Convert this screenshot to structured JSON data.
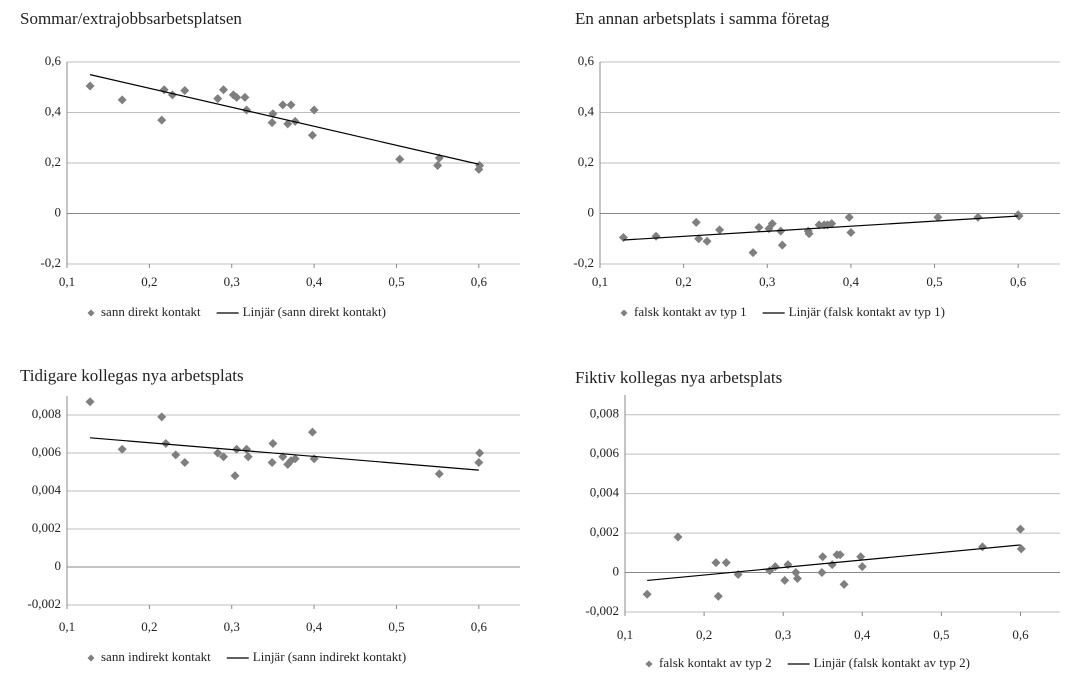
{
  "chart_data": [
    {
      "type": "scatter",
      "title": "Sommar/extrajobbsarbetsplatsen",
      "xlim": [
        0.1,
        0.65
      ],
      "ylim": [
        -0.2,
        0.6
      ],
      "xticks": [
        {
          "value": 0.1,
          "label": "0,1"
        },
        {
          "value": 0.2,
          "label": "0,2"
        },
        {
          "value": 0.3,
          "label": "0,3"
        },
        {
          "value": 0.4,
          "label": "0,4"
        },
        {
          "value": 0.5,
          "label": "0,5"
        },
        {
          "value": 0.6,
          "label": "0,6"
        }
      ],
      "yticks": [
        {
          "value": -0.2,
          "label": "-0,2"
        },
        0,
        {
          "value": 0.2,
          "label": "0,2"
        },
        {
          "value": 0.4,
          "label": "0,4"
        },
        {
          "value": 0.6,
          "label": "0,6"
        }
      ],
      "grid": true,
      "series": [
        {
          "name": "sann direkt kontakt",
          "type": "scatter",
          "color": "#7f7f7f",
          "x": [
            0.128,
            0.167,
            0.215,
            0.218,
            0.228,
            0.243,
            0.283,
            0.29,
            0.302,
            0.306,
            0.316,
            0.318,
            0.349,
            0.35,
            0.362,
            0.368,
            0.372,
            0.377,
            0.398,
            0.4,
            0.504,
            0.55,
            0.552,
            0.6,
            0.601
          ],
          "values": [
            0.505,
            0.45,
            0.37,
            0.49,
            0.47,
            0.487,
            0.455,
            0.49,
            0.47,
            0.46,
            0.46,
            0.41,
            0.36,
            0.395,
            0.43,
            0.355,
            0.43,
            0.365,
            0.31,
            0.41,
            0.215,
            0.19,
            0.22,
            0.175,
            0.19
          ]
        },
        {
          "name": "Linjär (sann direkt kontakt)",
          "type": "line",
          "color": "#000000",
          "x": [
            0.128,
            0.6
          ],
          "values": [
            0.55,
            0.195
          ]
        }
      ]
    },
    {
      "type": "scatter",
      "title": "En annan arbetsplats i samma företag",
      "xlim": [
        0.1,
        0.65
      ],
      "ylim": [
        -0.2,
        0.6
      ],
      "xticks": [
        {
          "value": 0.1,
          "label": "0,1"
        },
        {
          "value": 0.2,
          "label": "0,2"
        },
        {
          "value": 0.3,
          "label": "0,3"
        },
        {
          "value": 0.4,
          "label": "0,4"
        },
        {
          "value": 0.5,
          "label": "0,5"
        },
        {
          "value": 0.6,
          "label": "0,6"
        }
      ],
      "yticks": [
        {
          "value": -0.2,
          "label": "-0,2"
        },
        0,
        {
          "value": 0.2,
          "label": "0,2"
        },
        {
          "value": 0.4,
          "label": "0,4"
        },
        {
          "value": 0.6,
          "label": "0,6"
        }
      ],
      "grid": true,
      "series": [
        {
          "name": "falsk kontakt av typ 1",
          "type": "scatter",
          "color": "#7f7f7f",
          "x": [
            0.128,
            0.167,
            0.215,
            0.218,
            0.228,
            0.243,
            0.283,
            0.29,
            0.302,
            0.306,
            0.316,
            0.318,
            0.349,
            0.35,
            0.362,
            0.368,
            0.372,
            0.377,
            0.398,
            0.4,
            0.504,
            0.552,
            0.6,
            0.601
          ],
          "values": [
            -0.095,
            -0.09,
            -0.035,
            -0.1,
            -0.11,
            -0.065,
            -0.155,
            -0.055,
            -0.06,
            -0.04,
            -0.07,
            -0.125,
            -0.07,
            -0.08,
            -0.045,
            -0.045,
            -0.045,
            -0.04,
            -0.015,
            -0.075,
            -0.015,
            -0.015,
            -0.005,
            -0.01
          ]
        },
        {
          "name": "Linjär (falsk kontakt av typ 1)",
          "type": "line",
          "color": "#000000",
          "x": [
            0.128,
            0.6
          ],
          "values": [
            -0.105,
            -0.01
          ]
        }
      ]
    },
    {
      "type": "scatter",
      "title": "Tidigare kollegas nya arbetsplats",
      "xlim": [
        0.1,
        0.65
      ],
      "ylim": [
        -0.002,
        0.009
      ],
      "xticks": [
        {
          "value": 0.1,
          "label": "0,1"
        },
        {
          "value": 0.2,
          "label": "0,2"
        },
        {
          "value": 0.3,
          "label": "0,3"
        },
        {
          "value": 0.4,
          "label": "0,4"
        },
        {
          "value": 0.5,
          "label": "0,5"
        },
        {
          "value": 0.6,
          "label": "0,6"
        }
      ],
      "yticks": [
        {
          "value": -0.002,
          "label": "-0,002"
        },
        0,
        {
          "value": 0.002,
          "label": "0,002"
        },
        {
          "value": 0.004,
          "label": "0,004"
        },
        {
          "value": 0.006,
          "label": "0,006"
        },
        {
          "value": 0.008,
          "label": "0,008"
        }
      ],
      "grid": true,
      "series": [
        {
          "name": "sann indirekt kontakt",
          "type": "scatter",
          "color": "#7f7f7f",
          "x": [
            0.128,
            0.167,
            0.215,
            0.22,
            0.232,
            0.243,
            0.283,
            0.29,
            0.304,
            0.306,
            0.318,
            0.32,
            0.349,
            0.35,
            0.362,
            0.368,
            0.372,
            0.377,
            0.398,
            0.4,
            0.552,
            0.6,
            0.601
          ],
          "values": [
            0.0087,
            0.0062,
            0.0079,
            0.0065,
            0.0059,
            0.0055,
            0.006,
            0.0058,
            0.0048,
            0.0062,
            0.0062,
            0.0058,
            0.0055,
            0.0065,
            0.0058,
            0.0054,
            0.0056,
            0.0057,
            0.0071,
            0.0057,
            0.0049,
            0.0055,
            0.006
          ]
        },
        {
          "name": "Linjär (sann indirekt kontakt)",
          "type": "line",
          "color": "#000000",
          "x": [
            0.128,
            0.6
          ],
          "values": [
            0.0068,
            0.0051
          ]
        }
      ]
    },
    {
      "type": "scatter",
      "title": "Fiktiv kollegas nya arbetsplats",
      "xlim": [
        0.1,
        0.65
      ],
      "ylim": [
        -0.002,
        0.009
      ],
      "xticks": [
        {
          "value": 0.1,
          "label": "0,1"
        },
        {
          "value": 0.2,
          "label": "0,2"
        },
        {
          "value": 0.3,
          "label": "0,3"
        },
        {
          "value": 0.4,
          "label": "0,4"
        },
        {
          "value": 0.5,
          "label": "0,5"
        },
        {
          "value": 0.6,
          "label": "0,6"
        }
      ],
      "yticks": [
        {
          "value": -0.002,
          "label": "-0,002"
        },
        0,
        {
          "value": 0.002,
          "label": "0,002"
        },
        {
          "value": 0.004,
          "label": "0,004"
        },
        {
          "value": 0.006,
          "label": "0,006"
        },
        {
          "value": 0.008,
          "label": "0,008"
        }
      ],
      "grid": true,
      "series": [
        {
          "name": "falsk kontakt av typ 2",
          "type": "scatter",
          "color": "#7f7f7f",
          "x": [
            0.128,
            0.167,
            0.215,
            0.218,
            0.228,
            0.243,
            0.283,
            0.29,
            0.302,
            0.306,
            0.316,
            0.318,
            0.349,
            0.35,
            0.362,
            0.368,
            0.372,
            0.377,
            0.398,
            0.4,
            0.552,
            0.6,
            0.601
          ],
          "values": [
            -0.0011,
            0.0018,
            0.0005,
            -0.0012,
            0.0005,
            -0.0001,
            0.0001,
            0.0003,
            -0.0004,
            0.0004,
            0,
            -0.0003,
            0,
            0.0008,
            0.0004,
            0.0009,
            0.0009,
            -0.0006,
            0.0008,
            0.0003,
            0.0013,
            0.0022,
            0.0012
          ]
        },
        {
          "name": "Linjär (falsk kontakt av typ 2)",
          "type": "line",
          "color": "#000000",
          "x": [
            0.128,
            0.6
          ],
          "values": [
            -0.0004,
            0.0014
          ]
        }
      ]
    }
  ]
}
